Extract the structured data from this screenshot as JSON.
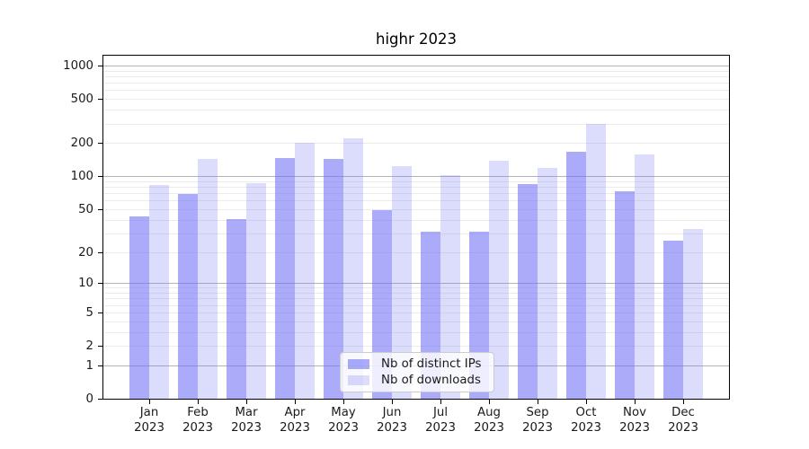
{
  "title": "highr 2023",
  "chart_data": {
    "type": "bar",
    "title": "highr 2023",
    "categories": [
      "Jan 2023",
      "Feb 2023",
      "Mar 2023",
      "Apr 2023",
      "May 2023",
      "Jun 2023",
      "Jul 2023",
      "Aug 2023",
      "Sep 2023",
      "Oct 2023",
      "Nov 2023",
      "Dec 2023"
    ],
    "x_tick_months": [
      "Jan",
      "Feb",
      "Mar",
      "Apr",
      "May",
      "Jun",
      "Jul",
      "Aug",
      "Sep",
      "Oct",
      "Nov",
      "Dec"
    ],
    "x_tick_year": "2023",
    "series": [
      {
        "name": "Nb of distinct IPs",
        "values": [
          43,
          70,
          41,
          147,
          145,
          49,
          31,
          31,
          85,
          167,
          74,
          26
        ]
      },
      {
        "name": "Nb of downloads",
        "values": [
          84,
          145,
          88,
          204,
          224,
          125,
          104,
          139,
          120,
          300,
          160,
          33
        ]
      }
    ],
    "xlabel": "",
    "ylabel": "",
    "yscale": "log1p",
    "ylim": [
      0,
      1264
    ],
    "yticks": [
      1000,
      500,
      200,
      100,
      50,
      20,
      10,
      5,
      2,
      1,
      0
    ],
    "grid": "horizontal, major (1,10,100,1000) darker + minor (2-9 per decade) lighter",
    "legend_position": "lower-center-inside"
  },
  "legend": {
    "items": [
      {
        "label": "Nb of distinct IPs",
        "swatch": "dark-periwinkle"
      },
      {
        "label": "Nb of downloads",
        "swatch": "light-lavender"
      }
    ]
  },
  "colors": {
    "bar_distinct_ips": "#6e6ef594",
    "bar_downloads": "#6e6ef53e",
    "grid_major": "#b4b4b4",
    "grid_minor": "#ebebeb",
    "axis": "#000000",
    "text": "#1a1a1a",
    "legend_border": "#cccccc"
  }
}
